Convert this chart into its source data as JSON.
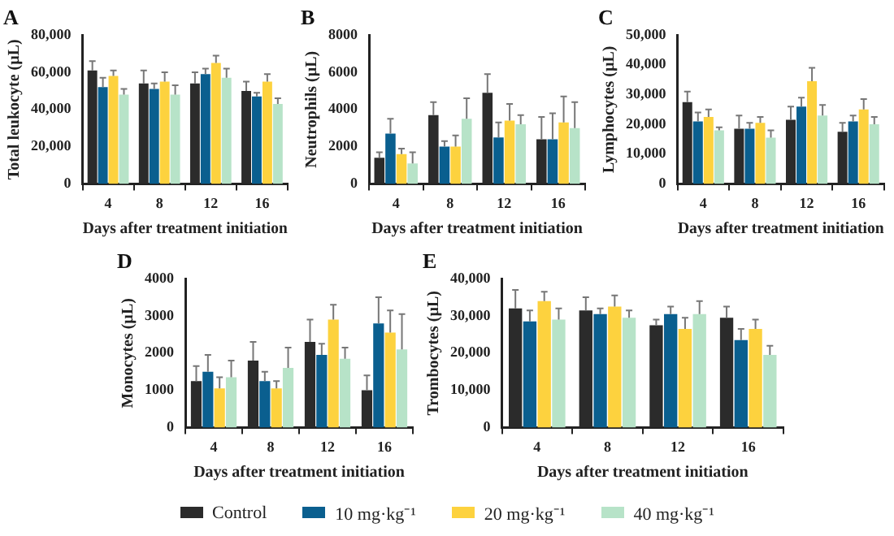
{
  "chart_data": [
    {
      "type": "bar",
      "title": "A",
      "xlabel": "Days after treatment initiation",
      "ylabel": "Total leukocyte (µL)",
      "categories": [
        "4",
        "8",
        "12",
        "16"
      ],
      "ylim": [
        0,
        80000
      ],
      "yticks": [
        {
          "value": 0,
          "label": "0"
        },
        {
          "value": 20000,
          "label": "20,000"
        },
        {
          "value": 40000,
          "label": "40,000"
        },
        {
          "value": 60000,
          "label": "60,000"
        },
        {
          "value": 80000,
          "label": "80,000"
        }
      ],
      "grid": false,
      "legend": "bottom",
      "series": [
        {
          "name": "Control",
          "color": "#2b2b2b",
          "values": [
            61000,
            54000,
            54000,
            50000
          ],
          "errors": [
            [
              61000,
              66000
            ],
            [
              54000,
              61000
            ],
            [
              54000,
              60000
            ],
            [
              50000,
              55000
            ]
          ]
        },
        {
          "name": "10 mg·kg⁻¹",
          "color": "#0a5f8f",
          "values": [
            52000,
            51000,
            59000,
            47000
          ],
          "errors": [
            [
              52000,
              57000
            ],
            [
              51000,
              54000
            ],
            [
              59000,
              62000
            ],
            [
              47000,
              49000
            ]
          ]
        },
        {
          "name": "20 mg·kg⁻¹",
          "color": "#fdd23e",
          "values": [
            58000,
            55000,
            65000,
            55000
          ],
          "errors": [
            [
              58000,
              61000
            ],
            [
              55000,
              60000
            ],
            [
              65000,
              69000
            ],
            [
              55000,
              59000
            ]
          ]
        },
        {
          "name": "40 mg·kg⁻¹",
          "color": "#b7e3c8",
          "values": [
            48000,
            48000,
            57000,
            43000
          ],
          "errors": [
            [
              48000,
              51000
            ],
            [
              48000,
              53000
            ],
            [
              57000,
              62000
            ],
            [
              43000,
              46000
            ]
          ]
        }
      ]
    },
    {
      "type": "bar",
      "title": "B",
      "xlabel": "Days after treatment initiation",
      "ylabel": "Neutrophils (µL)",
      "categories": [
        "4",
        "8",
        "12",
        "16"
      ],
      "ylim": [
        0,
        8000
      ],
      "yticks": [
        0,
        2000,
        4000,
        6000,
        8000
      ],
      "grid": false,
      "series": [
        {
          "color": "#2b2b2b",
          "values": [
            1400,
            3700,
            4900,
            2400
          ],
          "errors": [
            [
              1400,
              1700
            ],
            [
              3700,
              4400
            ],
            [
              4900,
              5900
            ],
            [
              2400,
              3600
            ]
          ]
        },
        {
          "color": "#0a5f8f",
          "values": [
            2700,
            2000,
            2500,
            2400
          ],
          "errors": [
            [
              2700,
              3500
            ],
            [
              2000,
              2300
            ],
            [
              2500,
              3300
            ],
            [
              2400,
              3800
            ]
          ]
        },
        {
          "color": "#fdd23e",
          "values": [
            1600,
            2000,
            3400,
            3300
          ],
          "errors": [
            [
              1600,
              1900
            ],
            [
              2000,
              2600
            ],
            [
              3400,
              4300
            ],
            [
              3300,
              4700
            ]
          ]
        },
        {
          "color": "#b7e3c8",
          "values": [
            1100,
            3500,
            3200,
            3000
          ],
          "errors": [
            [
              1100,
              1700
            ],
            [
              3500,
              4600
            ],
            [
              3200,
              3700
            ],
            [
              3000,
              4400
            ]
          ]
        }
      ]
    },
    {
      "type": "bar",
      "title": "C",
      "xlabel": "Days after treatment initiation",
      "ylabel": "Lymphocytes (µL)",
      "categories": [
        "4",
        "8",
        "12",
        "16"
      ],
      "ylim": [
        0,
        50000
      ],
      "yticks": [
        {
          "value": 0,
          "label": "0"
        },
        {
          "value": 10000,
          "label": "10,000"
        },
        {
          "value": 20000,
          "label": "20,000"
        },
        {
          "value": 30000,
          "label": "30,000"
        },
        {
          "value": 40000,
          "label": "40,000"
        },
        {
          "value": 50000,
          "label": "50,000"
        }
      ],
      "grid": false,
      "series": [
        {
          "color": "#2b2b2b",
          "values": [
            27500,
            18500,
            21500,
            17500
          ],
          "errors": [
            [
              27500,
              31000
            ],
            [
              18500,
              23000
            ],
            [
              21500,
              26000
            ],
            [
              17500,
              20500
            ]
          ]
        },
        {
          "color": "#0a5f8f",
          "values": [
            21000,
            18500,
            26000,
            21000
          ],
          "errors": [
            [
              21000,
              24000
            ],
            [
              18500,
              20500
            ],
            [
              26000,
              29000
            ],
            [
              21000,
              23000
            ]
          ]
        },
        {
          "color": "#fdd23e",
          "values": [
            22500,
            20500,
            34500,
            25000
          ],
          "errors": [
            [
              22500,
              25000
            ],
            [
              20500,
              22500
            ],
            [
              34500,
              39000
            ],
            [
              25000,
              28500
            ]
          ]
        },
        {
          "color": "#b7e3c8",
          "values": [
            18000,
            15500,
            23000,
            20000
          ],
          "errors": [
            [
              18000,
              19000
            ],
            [
              15500,
              18000
            ],
            [
              23000,
              26500
            ],
            [
              20000,
              22500
            ]
          ]
        }
      ]
    },
    {
      "type": "bar",
      "title": "D",
      "xlabel": "Days after treatment initiation",
      "ylabel": "Monocytes (µL)",
      "categories": [
        "4",
        "8",
        "12",
        "16"
      ],
      "ylim": [
        0,
        4000
      ],
      "yticks": [
        0,
        1000,
        2000,
        3000,
        4000
      ],
      "grid": false,
      "series": [
        {
          "color": "#2b2b2b",
          "values": [
            1250,
            1800,
            2300,
            1000
          ],
          "errors": [
            [
              1250,
              1650
            ],
            [
              1800,
              2300
            ],
            [
              2300,
              2900
            ],
            [
              1000,
              1400
            ]
          ]
        },
        {
          "color": "#0a5f8f",
          "values": [
            1500,
            1250,
            1950,
            2800
          ],
          "errors": [
            [
              1500,
              1950
            ],
            [
              1250,
              1500
            ],
            [
              1950,
              2250
            ],
            [
              2800,
              3500
            ]
          ]
        },
        {
          "color": "#fdd23e",
          "values": [
            1050,
            1050,
            2900,
            2550
          ],
          "errors": [
            [
              1050,
              1350
            ],
            [
              1050,
              1250
            ],
            [
              2900,
              3300
            ],
            [
              2550,
              3150
            ]
          ]
        },
        {
          "color": "#b7e3c8",
          "values": [
            1350,
            1600,
            1850,
            2100
          ],
          "errors": [
            [
              1350,
              1800
            ],
            [
              1600,
              2150
            ],
            [
              1850,
              2150
            ],
            [
              2100,
              3050
            ]
          ]
        }
      ]
    },
    {
      "type": "bar",
      "title": "E",
      "xlabel": "Days after treatment initiation",
      "ylabel": "Trombocytes (µL)",
      "categories": [
        "4",
        "8",
        "12",
        "16"
      ],
      "ylim": [
        0,
        40000
      ],
      "yticks": [
        {
          "value": 0,
          "label": "0"
        },
        {
          "value": 10000,
          "label": "10,000"
        },
        {
          "value": 20000,
          "label": "20,000"
        },
        {
          "value": 30000,
          "label": "30,000"
        },
        {
          "value": 40000,
          "label": "40,000"
        }
      ],
      "grid": false,
      "series": [
        {
          "color": "#2b2b2b",
          "values": [
            32000,
            31500,
            27500,
            29500
          ],
          "errors": [
            [
              32000,
              37000
            ],
            [
              31500,
              35000
            ],
            [
              27500,
              29000
            ],
            [
              29500,
              32500
            ]
          ]
        },
        {
          "color": "#0a5f8f",
          "values": [
            28500,
            30500,
            30500,
            23500
          ],
          "errors": [
            [
              28500,
              31500
            ],
            [
              30500,
              32000
            ],
            [
              30500,
              32500
            ],
            [
              23500,
              26500
            ]
          ]
        },
        {
          "color": "#fdd23e",
          "values": [
            34000,
            32500,
            26500,
            26500
          ],
          "errors": [
            [
              34000,
              36500
            ],
            [
              32500,
              35500
            ],
            [
              26500,
              29500
            ],
            [
              26500,
              29000
            ]
          ]
        },
        {
          "color": "#b7e3c8",
          "values": [
            29000,
            29500,
            30500,
            19500
          ],
          "errors": [
            [
              29000,
              32000
            ],
            [
              29500,
              31500
            ],
            [
              30500,
              34000
            ],
            [
              19500,
              22000
            ]
          ]
        }
      ]
    }
  ]
}
